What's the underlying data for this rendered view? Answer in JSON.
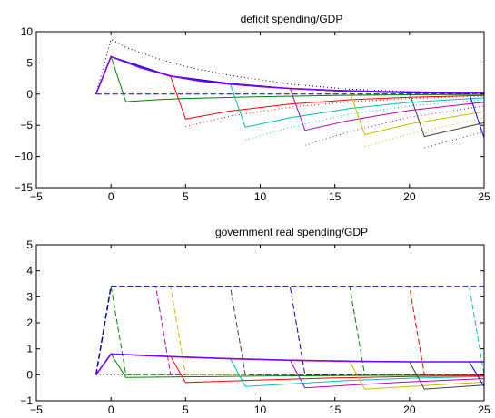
{
  "chart_data": [
    {
      "type": "line",
      "title": "deficit spending/GDP",
      "xlabel": "",
      "ylabel": "",
      "xlim": [
        -5,
        25
      ],
      "ylim": [
        -15,
        10
      ],
      "xticks": [
        -5,
        0,
        5,
        10,
        15,
        20,
        25
      ],
      "yticks": [
        -15,
        -10,
        -5,
        0,
        5,
        10
      ],
      "grid": false,
      "series": [
        {
          "color": "#000000",
          "style": "dotted",
          "x": [
            -1,
            0,
            1,
            3,
            5,
            8,
            12,
            16,
            20,
            25
          ],
          "y": [
            0,
            8.8,
            7.5,
            5.8,
            4.4,
            3.0,
            1.6,
            0.8,
            0.4,
            0.1
          ]
        },
        {
          "color": "#0000bf",
          "style": "dashed",
          "x": [
            -1,
            0,
            5,
            10,
            15,
            20,
            25
          ],
          "y": [
            0,
            0,
            0,
            0,
            0,
            0,
            0
          ]
        },
        {
          "color": "#008000",
          "style": "solid",
          "x": [
            -1,
            0,
            1,
            3,
            5,
            10,
            15,
            20,
            25
          ],
          "y": [
            0,
            6,
            -1.2,
            -0.9,
            -0.7,
            -0.4,
            -0.2,
            -0.1,
            -0.05
          ]
        },
        {
          "color": "#ff0000",
          "style": "solid",
          "x": [
            -1,
            0,
            4,
            5,
            8,
            12,
            16,
            20,
            25
          ],
          "y": [
            0,
            6,
            2.8,
            -4.0,
            -2.7,
            -1.6,
            -0.9,
            -0.5,
            -0.2
          ]
        },
        {
          "color": "#00bfbf",
          "style": "solid",
          "x": [
            -1,
            0,
            4,
            8,
            9,
            12,
            16,
            20,
            25
          ],
          "y": [
            0,
            6,
            2.9,
            1.6,
            -5.3,
            -3.8,
            -2.3,
            -1.3,
            -0.6
          ]
        },
        {
          "color": "#bf00bf",
          "style": "solid",
          "x": [
            -1,
            0,
            4,
            8,
            12,
            13,
            16,
            20,
            25
          ],
          "y": [
            0,
            6,
            2.9,
            1.7,
            0.9,
            -5.8,
            -4.2,
            -2.6,
            -1.3
          ]
        },
        {
          "color": "#bfbf00",
          "style": "solid",
          "x": [
            -1,
            0,
            4,
            8,
            12,
            16,
            17,
            20,
            25
          ],
          "y": [
            0,
            6,
            2.9,
            1.7,
            0.9,
            0.4,
            -6.5,
            -4.8,
            -2.8
          ]
        },
        {
          "color": "#404040",
          "style": "solid",
          "x": [
            -1,
            0,
            4,
            8,
            12,
            16,
            20,
            21,
            25
          ],
          "y": [
            0,
            6,
            2.9,
            1.7,
            0.9,
            0.4,
            0.2,
            -6.8,
            -4.6
          ]
        },
        {
          "color": "#0000ff",
          "style": "solid",
          "x": [
            -1,
            0,
            4,
            8,
            12,
            16,
            20,
            24,
            25
          ],
          "y": [
            0,
            6,
            2.9,
            1.7,
            0.9,
            0.4,
            0.2,
            0.1,
            -7.0
          ]
        },
        {
          "color": "#ff0000",
          "style": "dotted",
          "x": [
            5,
            8,
            12,
            16,
            20,
            25
          ],
          "y": [
            -5.2,
            -3.5,
            -2.1,
            -1.2,
            -0.7,
            -0.3
          ]
        },
        {
          "color": "#00bfbf",
          "style": "dotted",
          "x": [
            9,
            12,
            16,
            20,
            25
          ],
          "y": [
            -7.4,
            -5.3,
            -3.2,
            -1.9,
            -0.9
          ]
        },
        {
          "color": "#bf00bf",
          "style": "dotted",
          "x": [
            13,
            16,
            20,
            25
          ],
          "y": [
            -8.2,
            -6.0,
            -3.7,
            -1.9
          ]
        },
        {
          "color": "#bfbf00",
          "style": "dotted",
          "x": [
            17,
            20,
            25
          ],
          "y": [
            -8.4,
            -6.4,
            -3.8
          ]
        },
        {
          "color": "#404040",
          "style": "dotted",
          "x": [
            21,
            25
          ],
          "y": [
            -8.6,
            -6.0
          ]
        },
        {
          "color": "#8000ff",
          "style": "solid",
          "width": 1.6,
          "x": [
            -1,
            0,
            2,
            4,
            6,
            8,
            10,
            12,
            15,
            18,
            21,
            25
          ],
          "y": [
            0,
            6,
            4.2,
            2.9,
            2.1,
            1.6,
            1.2,
            0.9,
            0.6,
            0.4,
            0.3,
            0.2
          ]
        }
      ]
    },
    {
      "type": "line",
      "title": "government real spending/GDP",
      "xlabel": "",
      "ylabel": "",
      "xlim": [
        -5,
        25
      ],
      "ylim": [
        -1,
        5
      ],
      "xticks": [
        -5,
        0,
        5,
        10,
        15,
        20,
        25
      ],
      "yticks": [
        -1,
        0,
        1,
        2,
        3,
        4,
        5
      ],
      "grid": false,
      "series": [
        {
          "color": "#000000",
          "style": "dotted",
          "x": [
            -1,
            0,
            1,
            5,
            10,
            15,
            20,
            25
          ],
          "y": [
            0,
            0,
            0,
            0,
            0,
            0,
            0,
            0
          ]
        },
        {
          "color": "#008000",
          "style": "dashed",
          "x": [
            -1,
            0,
            1,
            25
          ],
          "y": [
            0,
            3.4,
            0,
            0
          ]
        },
        {
          "color": "#bf00bf",
          "style": "dashed",
          "x": [
            -1,
            0,
            3,
            4,
            25
          ],
          "y": [
            0,
            3.4,
            3.4,
            0,
            0
          ]
        },
        {
          "color": "#bfbf00",
          "style": "dashed",
          "x": [
            -1,
            0,
            4,
            5,
            25
          ],
          "y": [
            0,
            3.4,
            3.4,
            0,
            0
          ]
        },
        {
          "color": "#404040",
          "style": "dashed",
          "x": [
            -1,
            0,
            8,
            9,
            25
          ],
          "y": [
            0,
            3.4,
            3.4,
            0,
            0
          ]
        },
        {
          "color": "#0000bf",
          "style": "dashed",
          "x": [
            -1,
            0,
            12,
            13,
            25
          ],
          "y": [
            0,
            3.4,
            3.4,
            0,
            0
          ]
        },
        {
          "color": "#008000",
          "style": "dashed",
          "x": [
            -1,
            0,
            16,
            17,
            25
          ],
          "y": [
            0,
            3.4,
            3.4,
            0,
            0
          ]
        },
        {
          "color": "#ff0000",
          "style": "dashed",
          "x": [
            -1,
            0,
            20,
            21,
            25
          ],
          "y": [
            0,
            3.4,
            3.4,
            0,
            0
          ]
        },
        {
          "color": "#00bfbf",
          "style": "dashed",
          "x": [
            -1,
            0,
            24,
            25
          ],
          "y": [
            0,
            3.4,
            3.4,
            0
          ]
        },
        {
          "color": "#0000bf",
          "style": "dashed",
          "width": 1.4,
          "x": [
            -1,
            0,
            25
          ],
          "y": [
            0,
            3.4,
            3.4
          ]
        },
        {
          "color": "#008000",
          "style": "solid",
          "x": [
            -1,
            0,
            1,
            5,
            10,
            15,
            20,
            25
          ],
          "y": [
            0,
            0.8,
            -0.1,
            -0.08,
            -0.05,
            -0.03,
            -0.02,
            -0.01
          ]
        },
        {
          "color": "#ff0000",
          "style": "solid",
          "x": [
            -1,
            0,
            4,
            5,
            10,
            15,
            20,
            25
          ],
          "y": [
            0,
            0.8,
            0.7,
            -0.3,
            -0.2,
            -0.12,
            -0.07,
            -0.04
          ]
        },
        {
          "color": "#00bfbf",
          "style": "solid",
          "x": [
            -1,
            0,
            4,
            8,
            9,
            12,
            16,
            20,
            25
          ],
          "y": [
            0,
            0.8,
            0.7,
            0.62,
            -0.45,
            -0.35,
            -0.22,
            -0.13,
            -0.07
          ]
        },
        {
          "color": "#bf00bf",
          "style": "solid",
          "x": [
            -1,
            0,
            4,
            8,
            12,
            13,
            16,
            20,
            25
          ],
          "y": [
            0,
            0.8,
            0.7,
            0.62,
            0.56,
            -0.5,
            -0.4,
            -0.27,
            -0.15
          ]
        },
        {
          "color": "#bfbf00",
          "style": "solid",
          "x": [
            -1,
            0,
            4,
            8,
            12,
            16,
            17,
            20,
            25
          ],
          "y": [
            0,
            0.8,
            0.7,
            0.62,
            0.56,
            0.52,
            -0.55,
            -0.45,
            -0.28
          ]
        },
        {
          "color": "#404040",
          "style": "solid",
          "x": [
            -1,
            0,
            4,
            8,
            12,
            16,
            20,
            21,
            25
          ],
          "y": [
            0,
            0.8,
            0.7,
            0.62,
            0.56,
            0.52,
            0.5,
            -0.55,
            -0.4
          ]
        },
        {
          "color": "#0000ff",
          "style": "solid",
          "x": [
            -1,
            0,
            4,
            8,
            12,
            16,
            20,
            24,
            25
          ],
          "y": [
            0,
            0.8,
            0.7,
            0.62,
            0.56,
            0.52,
            0.5,
            0.5,
            -0.45
          ]
        },
        {
          "color": "#8000ff",
          "style": "solid",
          "width": 1.6,
          "x": [
            -1,
            0,
            4,
            8,
            12,
            16,
            20,
            25
          ],
          "y": [
            0,
            0.8,
            0.7,
            0.62,
            0.56,
            0.52,
            0.5,
            0.5
          ]
        }
      ]
    }
  ]
}
